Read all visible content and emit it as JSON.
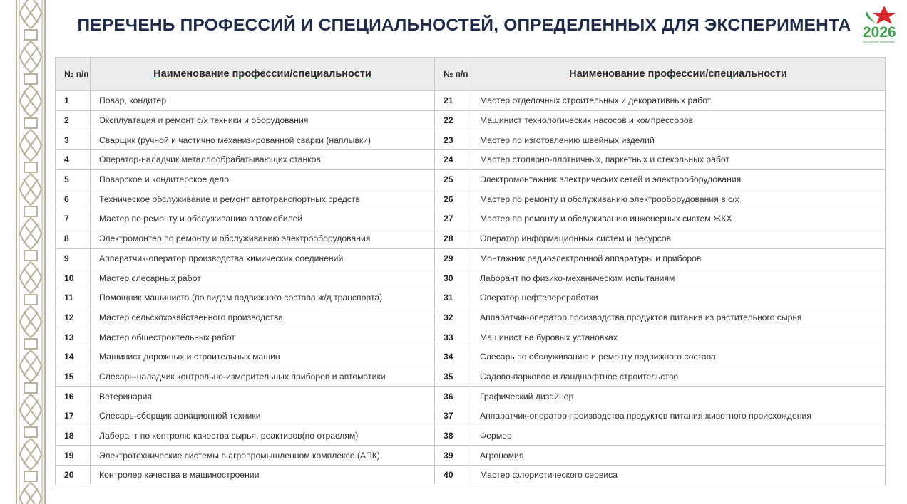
{
  "title": "ПЕРЕЧЕНЬ ПРОФЕССИЙ И СПЕЦИАЛЬНОСТЕЙ, ОПРЕДЕЛЕННЫХ ДЛЯ ЭКСПЕРИМЕНТА",
  "logo": {
    "year": "2026",
    "subtitle": "Год рабочих профессий",
    "colors": {
      "green": "#3aa14a",
      "red": "#d8262c"
    }
  },
  "table": {
    "headers": {
      "num": "№ п/п",
      "name": "Наименование профессии/специальности"
    },
    "left": [
      {
        "n": "1",
        "name": "Повар, кондитер"
      },
      {
        "n": "2",
        "name": "Эксплуатация и ремонт с/х техники и оборудования"
      },
      {
        "n": "3",
        "name": "Сварщик (ручной и частично механизированной сварки (наплывки)"
      },
      {
        "n": "4",
        "name": "Оператор-наладчик металлообрабатывающих станков"
      },
      {
        "n": "5",
        "name": "Поварское и кондитерское дело"
      },
      {
        "n": "6",
        "name": "Техническое обслуживание и ремонт автотранспортных средств"
      },
      {
        "n": "7",
        "name": "Мастер по ремонту и обслуживанию автомобилей"
      },
      {
        "n": "8",
        "name": "Электромонтер по ремонту и обслуживанию электрооборудования"
      },
      {
        "n": "9",
        "name": "Аппаратчик-оператор производства химических соединений"
      },
      {
        "n": "10",
        "name": "Мастер слесарных работ"
      },
      {
        "n": "11",
        "name": "Помощник машиниста (по видам подвижного состава ж/д транспорта)"
      },
      {
        "n": "12",
        "name": "Мастер сельскохозяйственного производства"
      },
      {
        "n": "13",
        "name": "Мастер общестроительных работ"
      },
      {
        "n": "14",
        "name": "Машинист дорожных и строительных машин"
      },
      {
        "n": "15",
        "name": "Слесарь-наладчик контрольно-измерительных приборов и автоматики"
      },
      {
        "n": "16",
        "name": "Ветеринария"
      },
      {
        "n": "17",
        "name": "Слесарь-сборщик авиационной техники"
      },
      {
        "n": "18",
        "name": "Лаборант по контролю качества сырья, реактивов(по отраслям)"
      },
      {
        "n": "19",
        "name": "Электротехнические системы в агропромышленном комплексе (АПК)"
      },
      {
        "n": "20",
        "name": "Контролер качества в машиностроении"
      }
    ],
    "right": [
      {
        "n": "21",
        "name": "Мастер отделочных строительных и декоративных работ"
      },
      {
        "n": "22",
        "name": "Машинист технологических насосов и компрессоров"
      },
      {
        "n": "23",
        "name": "Мастер по изготовлению швейных изделий"
      },
      {
        "n": "24",
        "name": "Мастер столярно-плотничных, паркетных и стекольных работ"
      },
      {
        "n": "25",
        "name": "Электромонтажник электрических сетей и электрооборудования"
      },
      {
        "n": "26",
        "name": "Мастер по ремонту и обслуживанию электрооборудования в с/х"
      },
      {
        "n": "27",
        "name": "Мастер по ремонту и обслуживанию инженерных систем ЖКХ"
      },
      {
        "n": "28",
        "name": "Оператор информационных систем и ресурсов"
      },
      {
        "n": "29",
        "name": "Монтажник радиоэлектронной аппаратуры и приборов"
      },
      {
        "n": "30",
        "name": "Лаборант по физико-механическим испытаниям"
      },
      {
        "n": "31",
        "name": "Оператор нефтепереработки"
      },
      {
        "n": "32",
        "name": "Аппаратчик-оператор производства продуктов питания из растительного сырья"
      },
      {
        "n": "33",
        "name": "Машинист на буровых установках"
      },
      {
        "n": "34",
        "name": "Слесарь по обслуживанию и ремонту подвижного состава"
      },
      {
        "n": "35",
        "name": "Садово-парковое и ландшафтное строительство"
      },
      {
        "n": "36",
        "name": "Графический дизайнер"
      },
      {
        "n": "37",
        "name": "Аппаратчик-оператор производства продуктов питания животного происхождения"
      },
      {
        "n": "38",
        "name": "Фермер"
      },
      {
        "n": "39",
        "name": "Агрономия"
      },
      {
        "n": "40",
        "name": "Мастер флористического сервиса"
      }
    ]
  }
}
